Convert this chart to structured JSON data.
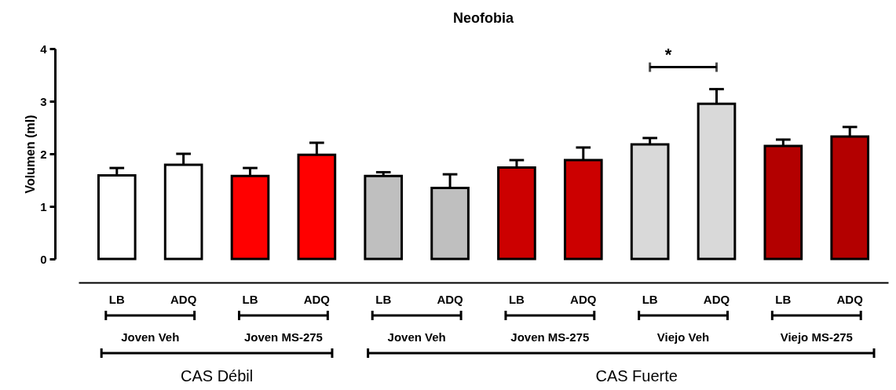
{
  "chart_data": {
    "type": "bar",
    "title": "Neofobia",
    "ylabel": "Volumen (ml)",
    "categories": [
      "LB",
      "ADQ",
      "LB",
      "ADQ",
      "LB",
      "ADQ",
      "LB",
      "ADQ",
      "LB",
      "ADQ",
      "LB",
      "ADQ"
    ],
    "values": [
      1.59,
      1.79,
      1.58,
      1.98,
      1.58,
      1.35,
      1.74,
      1.88,
      2.18,
      2.95,
      2.15,
      2.33
    ],
    "errors": [
      [
        1.59,
        1.73
      ],
      [
        1.79,
        2.0
      ],
      [
        1.58,
        1.73
      ],
      [
        1.98,
        2.21
      ],
      [
        1.58,
        1.65
      ],
      [
        1.35,
        1.61
      ],
      [
        1.74,
        1.88
      ],
      [
        1.88,
        2.12
      ],
      [
        2.18,
        2.3
      ],
      [
        2.95,
        3.23
      ],
      [
        2.15,
        2.27
      ],
      [
        2.33,
        2.51
      ]
    ],
    "colors": [
      "#ffffff",
      "#ffffff",
      "#ff0000",
      "#ff0000",
      "#bfbfbf",
      "#bfbfbf",
      "#cc0000",
      "#cc0000",
      "#d9d9d9",
      "#d9d9d9",
      "#b30000",
      "#b30000"
    ],
    "ylim": [
      0,
      4
    ],
    "yticks": [
      0,
      1,
      2,
      3,
      4
    ],
    "grid": false,
    "annotations": [
      "Joven Veh",
      "Joven MS-275",
      "Joven Veh",
      "Joven MS-275",
      "Viejo Veh",
      "Viejo MS-275",
      "CAS Débil",
      "CAS Fuerte",
      "*"
    ]
  }
}
